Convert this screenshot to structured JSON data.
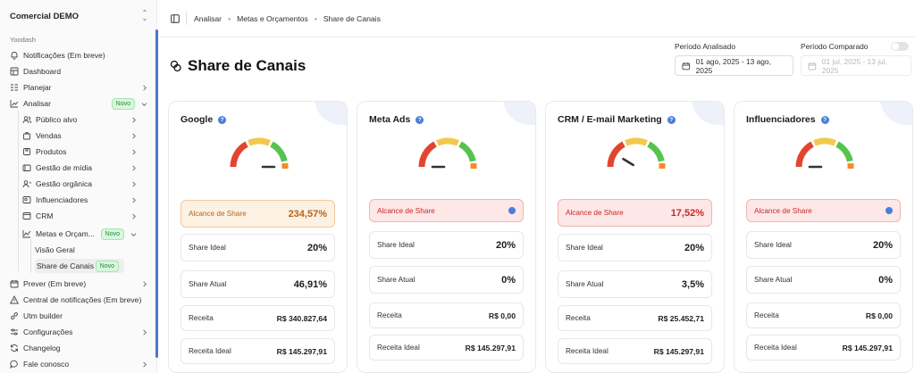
{
  "sidebar": {
    "workspace": "Comercial DEMO",
    "group_label": "Yoodash",
    "items": [
      {
        "label": "Notificações (Em breve)"
      },
      {
        "label": "Dashboard"
      },
      {
        "label": "Planejar"
      },
      {
        "label": "Analisar",
        "badge": "Novo"
      },
      {
        "label": "Público alvo"
      },
      {
        "label": "Vendas"
      },
      {
        "label": "Produtos"
      },
      {
        "label": "Gestão de mídia"
      },
      {
        "label": "Gestão orgânica"
      },
      {
        "label": "Influenciadores"
      },
      {
        "label": "CRM"
      },
      {
        "label": "Metas e Orçam...",
        "badge": "Novo"
      },
      {
        "label": "Visão Geral"
      },
      {
        "label": "Share de Canais",
        "badge": "Novo"
      },
      {
        "label": "Prever (Em breve)"
      },
      {
        "label": "Central de notificações (Em breve)"
      },
      {
        "label": "Utm builder"
      },
      {
        "label": "Configurações"
      },
      {
        "label": "Changelog"
      },
      {
        "label": "Fale conosco"
      }
    ]
  },
  "breadcrumb": [
    "Analisar",
    "Metas e Orçamentos",
    "Share de Canais"
  ],
  "page_title": "Share de Canais",
  "periods": {
    "analyzed_label": "Período Analisado",
    "analyzed_value": "01 ago, 2025 - 13 ago, 2025",
    "compared_label": "Período Comparado",
    "compared_value": "01 jul, 2025 - 13 jul, 2025"
  },
  "colors": {
    "accent": "#4a7ed9",
    "gauge_red": "#e2452f",
    "gauge_yellow": "#f2c94c",
    "gauge_green": "#57c34f",
    "gauge_orange": "#f28c28"
  },
  "cards": [
    {
      "title": "Google",
      "alcance_label": "Alcance de Share",
      "alcance_value": "234,57%",
      "share_ideal_label": "Share Ideal",
      "share_ideal": "20%",
      "share_atual_label": "Share Atual",
      "share_atual": "46,91%",
      "receita_label": "Receita",
      "receita": "R$ 340.827,64",
      "receita_ideal_label": "Receita Ideal",
      "receita_ideal": "R$ 145.297,91",
      "gauge_value": 1.0
    },
    {
      "title": "Meta Ads",
      "alcance_label": "Alcance de Share",
      "alcance_value": "",
      "share_ideal_label": "Share Ideal",
      "share_ideal": "20%",
      "share_atual_label": "Share Atual",
      "share_atual": "0%",
      "receita_label": "Receita",
      "receita": "R$ 0,00",
      "receita_ideal_label": "Receita Ideal",
      "receita_ideal": "R$ 145.297,91",
      "gauge_value": 0.0
    },
    {
      "title": "CRM / E-mail Marketing",
      "alcance_label": "Alcance de Share",
      "alcance_value": "17,52%",
      "share_ideal_label": "Share Ideal",
      "share_ideal": "20%",
      "share_atual_label": "Share Atual",
      "share_atual": "3,5%",
      "receita_label": "Receita",
      "receita": "R$ 25.452,71",
      "receita_ideal_label": "Receita Ideal",
      "receita_ideal": "R$ 145.297,91",
      "gauge_value": 0.175
    },
    {
      "title": "Influenciadores",
      "alcance_label": "Alcance de Share",
      "alcance_value": "",
      "share_ideal_label": "Share Ideal",
      "share_ideal": "20%",
      "share_atual_label": "Share Atual",
      "share_atual": "0%",
      "receita_label": "Receita",
      "receita": "R$ 0,00",
      "receita_ideal_label": "Receita Ideal",
      "receita_ideal": "R$ 145.297,91",
      "gauge_value": 0.0
    }
  ]
}
